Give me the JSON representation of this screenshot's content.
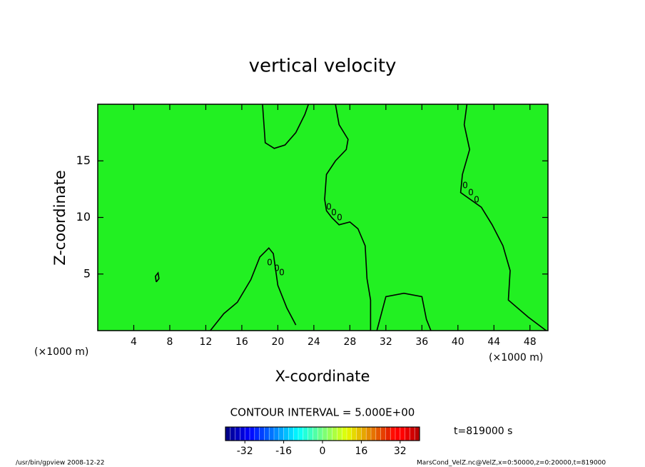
{
  "chart_data": {
    "type": "contour",
    "title": "vertical velocity",
    "x_label": "X-coordinate",
    "y_label": "Z-coordinate",
    "x_unit": "(×1000 m)",
    "y_unit": "(×1000 m)",
    "xlim": [
      0,
      50
    ],
    "ylim": [
      0,
      20
    ],
    "xticks": [
      4,
      8,
      12,
      16,
      20,
      24,
      28,
      32,
      36,
      40,
      44,
      48
    ],
    "yticks": [
      5,
      10,
      15
    ],
    "field_color": "#22f022",
    "contour_color": "#000000",
    "contour_label": "0",
    "contours": [
      {
        "x": [
          18.3,
          18.6,
          19.6,
          20.8,
          22.0,
          23.0,
          23.4
        ],
        "z": [
          20,
          16.6,
          16.1,
          16.4,
          17.5,
          19.1,
          20
        ]
      },
      {
        "x": [
          26.4,
          26.8,
          27.8,
          27.6,
          26.4,
          25.4,
          25.2,
          25.4,
          26.0,
          26.8,
          28.0,
          28.9,
          29.7,
          29.9,
          30.3,
          30.3
        ],
        "z": [
          20,
          18.2,
          16.9,
          16.0,
          15.0,
          13.8,
          11.6,
          10.6,
          9.98,
          9.35,
          9.6,
          9.0,
          7.5,
          4.6,
          2.7,
          0
        ]
      },
      {
        "x": [
          41.0,
          40.7,
          41.3,
          40.5,
          40.3,
          42.6,
          43.8,
          45.0,
          45.8,
          45.6,
          47.8,
          49.8
        ],
        "z": [
          20,
          18.2,
          16.0,
          13.8,
          12.2,
          10.9,
          9.35,
          7.5,
          5.3,
          2.7,
          1.2,
          0
        ]
      },
      {
        "x": [
          12.5,
          14,
          15.5,
          17,
          18,
          19,
          19.5,
          20,
          21,
          22
        ],
        "z": [
          0,
          1.5,
          2.5,
          4.5,
          6.5,
          7.3,
          6.8,
          4,
          2,
          0.5
        ]
      },
      {
        "x": [
          31,
          32,
          34,
          36,
          36.5,
          37
        ],
        "z": [
          0,
          3,
          3.3,
          3,
          1,
          0
        ]
      },
      {
        "x": [
          6.5,
          6.8,
          6.7,
          6.4,
          6.5
        ],
        "z": [
          4.3,
          4.6,
          5.1,
          4.8,
          4.3
        ]
      }
    ],
    "colorbar_label": "CONTOUR INTERVAL = 5.000E+00",
    "clim": [
      -40,
      40
    ],
    "cticks": [
      -32,
      -16,
      0,
      16,
      32
    ],
    "time_label": "t=819000 s",
    "footer_left": "/usr/bin/gpview  2008-12-22",
    "footer_right": "MarsCond_VelZ.nc@VelZ,x=0:50000,z=0:20000,t=819000"
  }
}
